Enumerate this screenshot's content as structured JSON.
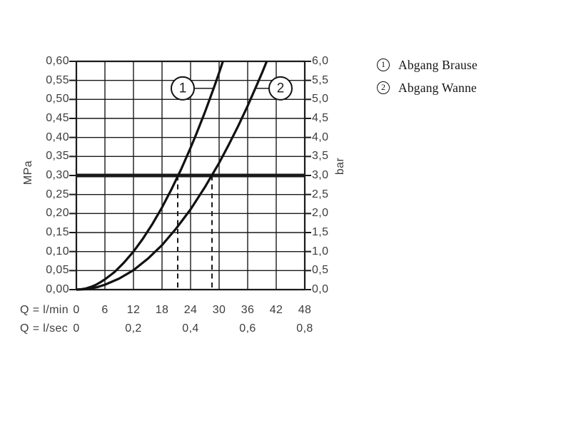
{
  "figure": {
    "background": "#ffffff",
    "ink_color": "#141414",
    "label_color": "#3d3d3d"
  },
  "chart_data": {
    "type": "line",
    "title": "",
    "x_axis": {
      "unit_row_1": "Q = l/min",
      "unit_row_2": "Q = l/sec",
      "range_lmin": [
        0,
        48
      ],
      "ticks_lmin": [
        "0",
        "6",
        "12",
        "18",
        "24",
        "30",
        "36",
        "42",
        "48"
      ],
      "ticks_lsec": [
        {
          "q": 0,
          "label": "0"
        },
        {
          "q": 12,
          "label": "0,2"
        },
        {
          "q": 24,
          "label": "0,4"
        },
        {
          "q": 36,
          "label": "0,6"
        },
        {
          "q": 48,
          "label": "0,8"
        }
      ]
    },
    "y_axis_left": {
      "unit": "MPa",
      "range": [
        0,
        0.6
      ],
      "step": 0.05,
      "ticks": [
        "0,60",
        "0,55",
        "0,50",
        "0,45",
        "0,40",
        "0,35",
        "0,30",
        "0,25",
        "0,20",
        "0,15",
        "0,10",
        "0,05",
        "0,00"
      ]
    },
    "y_axis_right": {
      "unit": "bar",
      "range": [
        0,
        6.0
      ],
      "step": 0.5,
      "ticks": [
        "6,0",
        "5,5",
        "5,0",
        "4,5",
        "4,0",
        "3,5",
        "3,0",
        "2,5",
        "2,0",
        "1,5",
        "1,0",
        "0,5",
        "0,0"
      ]
    },
    "grid": true,
    "reference_line_mpa": 0.3,
    "dashed_guides_q_lmin": [
      21.3,
      28.5
    ],
    "series": [
      {
        "name": "Abgang Brause",
        "callout_label": "1",
        "q_at_3bar_lmin": 21.3,
        "points_q_mpa": [
          [
            0,
            0
          ],
          [
            1,
            0.001
          ],
          [
            2,
            0.003
          ],
          [
            3,
            0.007
          ],
          [
            4,
            0.012
          ],
          [
            5,
            0.019
          ],
          [
            6,
            0.027
          ],
          [
            8,
            0.046
          ],
          [
            10,
            0.071
          ],
          [
            12,
            0.1
          ],
          [
            14,
            0.134
          ],
          [
            16,
            0.173
          ],
          [
            18,
            0.216
          ],
          [
            20,
            0.264
          ],
          [
            22,
            0.316
          ],
          [
            24,
            0.373
          ],
          [
            25,
            0.403
          ],
          [
            26,
            0.434
          ],
          [
            27,
            0.466
          ],
          [
            28,
            0.5
          ],
          [
            29,
            0.534
          ],
          [
            30,
            0.57
          ],
          [
            30.8,
            0.6
          ]
        ]
      },
      {
        "name": "Abgang Wanne",
        "callout_label": "2",
        "q_at_3bar_lmin": 28.5,
        "points_q_mpa": [
          [
            0,
            0
          ],
          [
            1.5,
            0.001
          ],
          [
            3,
            0.003
          ],
          [
            4.5,
            0.007
          ],
          [
            6,
            0.013
          ],
          [
            9,
            0.029
          ],
          [
            12,
            0.051
          ],
          [
            15,
            0.081
          ],
          [
            18,
            0.117
          ],
          [
            21,
            0.161
          ],
          [
            24,
            0.211
          ],
          [
            27,
            0.269
          ],
          [
            30,
            0.333
          ],
          [
            32,
            0.38
          ],
          [
            34,
            0.43
          ],
          [
            36,
            0.483
          ],
          [
            38,
            0.54
          ],
          [
            39,
            0.569
          ],
          [
            40,
            0.6
          ]
        ]
      }
    ],
    "callouts": [
      {
        "label": "1",
        "at_q": 22.35,
        "at_mpa": 0.529,
        "leader_to_q": 28.8
      },
      {
        "label": "2",
        "at_q": 42.9,
        "at_mpa": 0.529,
        "leader_to_q": 37.6
      }
    ],
    "legend_position": "top-right"
  },
  "legend": {
    "items": [
      {
        "symbol": "1",
        "label": "Abgang Brause"
      },
      {
        "symbol": "2",
        "label": "Abgang Wanne"
      }
    ]
  }
}
